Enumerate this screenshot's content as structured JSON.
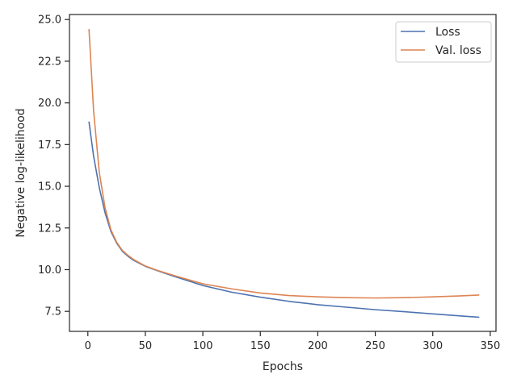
{
  "chart_data": {
    "type": "line",
    "xlabel": "Epochs",
    "ylabel": "Negative log-likelihood",
    "xlim": [
      -16,
      355
    ],
    "ylim": [
      6.3,
      25.3
    ],
    "xticks": [
      0,
      50,
      100,
      150,
      200,
      250,
      300,
      350
    ],
    "yticks": [
      7.5,
      10.0,
      12.5,
      15.0,
      17.5,
      20.0,
      22.5,
      25.0
    ],
    "xtick_labels": [
      "0",
      "50",
      "100",
      "150",
      "200",
      "250",
      "300",
      "350"
    ],
    "ytick_labels": [
      "7.5",
      "10.0",
      "12.5",
      "15.0",
      "17.5",
      "20.0",
      "22.5",
      "25.0"
    ],
    "grid": false,
    "legend_position": "top-right",
    "series": [
      {
        "name": "Loss",
        "color": "#4c72b0",
        "x": [
          1,
          5,
          10,
          15,
          20,
          25,
          30,
          35,
          40,
          50,
          60,
          75,
          100,
          125,
          150,
          175,
          200,
          225,
          250,
          275,
          300,
          325,
          340
        ],
        "y": [
          18.85,
          16.8,
          14.9,
          13.4,
          12.3,
          11.6,
          11.1,
          10.8,
          10.55,
          10.2,
          9.95,
          9.6,
          9.05,
          8.65,
          8.35,
          8.1,
          7.9,
          7.75,
          7.6,
          7.48,
          7.35,
          7.22,
          7.15
        ]
      },
      {
        "name": "Val. loss",
        "color": "#dd8452",
        "x": [
          1,
          5,
          10,
          15,
          20,
          25,
          30,
          35,
          40,
          50,
          60,
          75,
          100,
          125,
          150,
          175,
          200,
          225,
          250,
          275,
          300,
          325,
          340
        ],
        "y": [
          24.4,
          19.5,
          15.8,
          13.7,
          12.4,
          11.65,
          11.15,
          10.85,
          10.6,
          10.22,
          9.97,
          9.65,
          9.15,
          8.85,
          8.6,
          8.45,
          8.37,
          8.32,
          8.3,
          8.32,
          8.37,
          8.43,
          8.48
        ]
      }
    ]
  }
}
